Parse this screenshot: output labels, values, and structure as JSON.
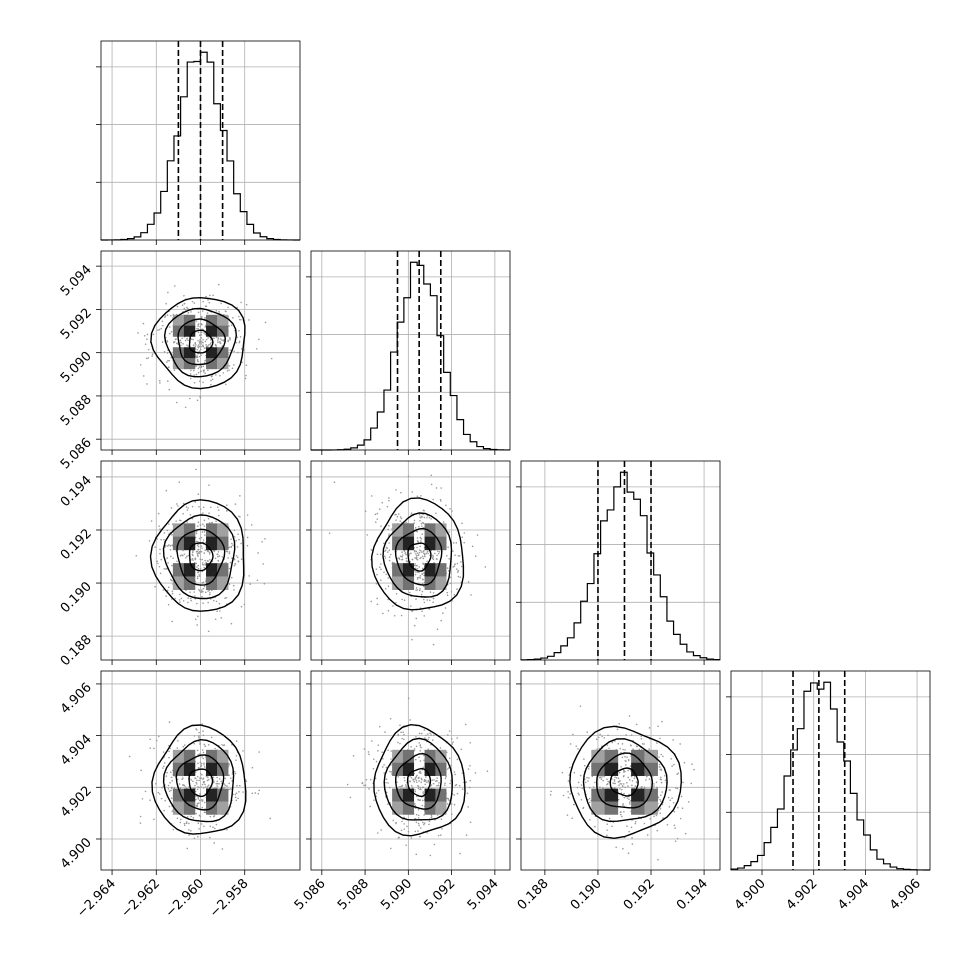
{
  "chart_data": {
    "type": "corner",
    "parameters": [
      {
        "range": [
          -2.9645,
          -2.9555
        ],
        "mean": -2.96,
        "sd": 0.001,
        "quantiles": [
          -2.961,
          -2.96,
          -2.959
        ],
        "ticks": [
          -2.964,
          -2.962,
          -2.96,
          -2.958
        ],
        "tick_labels": [
          "−2.964",
          "−2.962",
          "−2.960",
          "−2.958"
        ]
      },
      {
        "range": [
          5.0855,
          5.0947
        ],
        "mean": 5.0905,
        "sd": 0.001,
        "quantiles": [
          5.0895,
          5.0905,
          5.0915
        ],
        "ticks": [
          5.086,
          5.088,
          5.09,
          5.092,
          5.094
        ],
        "tick_labels": [
          "5.086",
          "5.088",
          "5.090",
          "5.092",
          "5.094"
        ]
      },
      {
        "range": [
          0.1871,
          0.1946
        ],
        "mean": 0.191,
        "sd": 0.001,
        "quantiles": [
          0.19,
          0.191,
          0.192
        ],
        "ticks": [
          0.188,
          0.19,
          0.192,
          0.194
        ],
        "tick_labels": [
          "0.188",
          "0.190",
          "0.192",
          "0.194"
        ]
      },
      {
        "range": [
          4.8988,
          4.9065
        ],
        "mean": 4.9022,
        "sd": 0.001,
        "quantiles": [
          4.9012,
          4.9022,
          4.9032
        ],
        "ticks": [
          4.9,
          4.902,
          4.904,
          4.906
        ],
        "tick_labels": [
          "4.900",
          "4.902",
          "4.904",
          "4.906"
        ]
      }
    ],
    "hist_bins": 30,
    "contour_levels_sigma": [
      0.5,
      1.0,
      1.5,
      2.0
    ],
    "grid": true
  }
}
